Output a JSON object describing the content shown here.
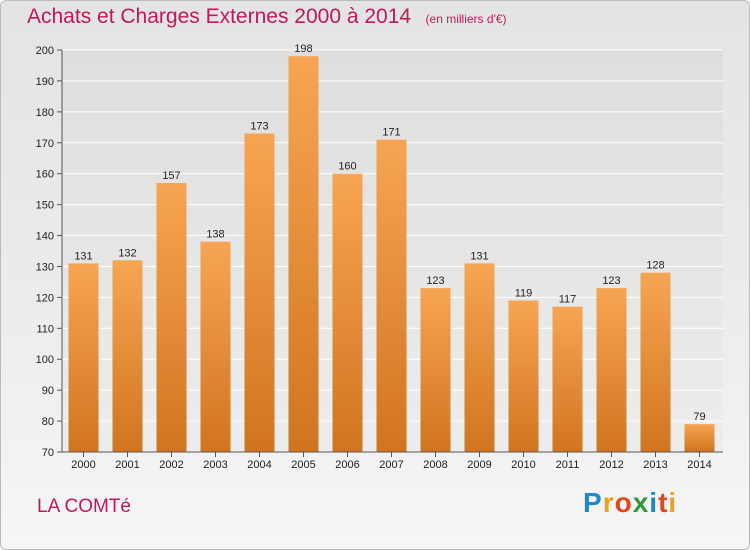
{
  "header": {
    "title": "Achats et Charges Externes 2000 à 2014",
    "subtitle": "(en milliers d'€)"
  },
  "footer": {
    "commune": "LA COMTé",
    "logo": "Proxiti"
  },
  "colors": {
    "bar_top": "#f7a553",
    "bar_bottom": "#d2741f",
    "title": "#c2185b"
  },
  "chart_data": {
    "type": "bar",
    "title": "Achats et Charges Externes 2000 à 2014",
    "subtitle": "(en milliers d'€)",
    "xlabel": "",
    "ylabel": "",
    "categories": [
      "2000",
      "2001",
      "2002",
      "2003",
      "2004",
      "2005",
      "2006",
      "2007",
      "2008",
      "2009",
      "2010",
      "2011",
      "2012",
      "2013",
      "2014"
    ],
    "values": [
      131,
      132,
      157,
      138,
      173,
      198,
      160,
      171,
      123,
      131,
      119,
      117,
      123,
      128,
      79
    ],
    "ylim": [
      70,
      200
    ],
    "yticks": [
      70,
      80,
      90,
      100,
      110,
      120,
      130,
      140,
      150,
      160,
      170,
      180,
      190,
      200
    ],
    "grid": true,
    "legend": "none"
  }
}
